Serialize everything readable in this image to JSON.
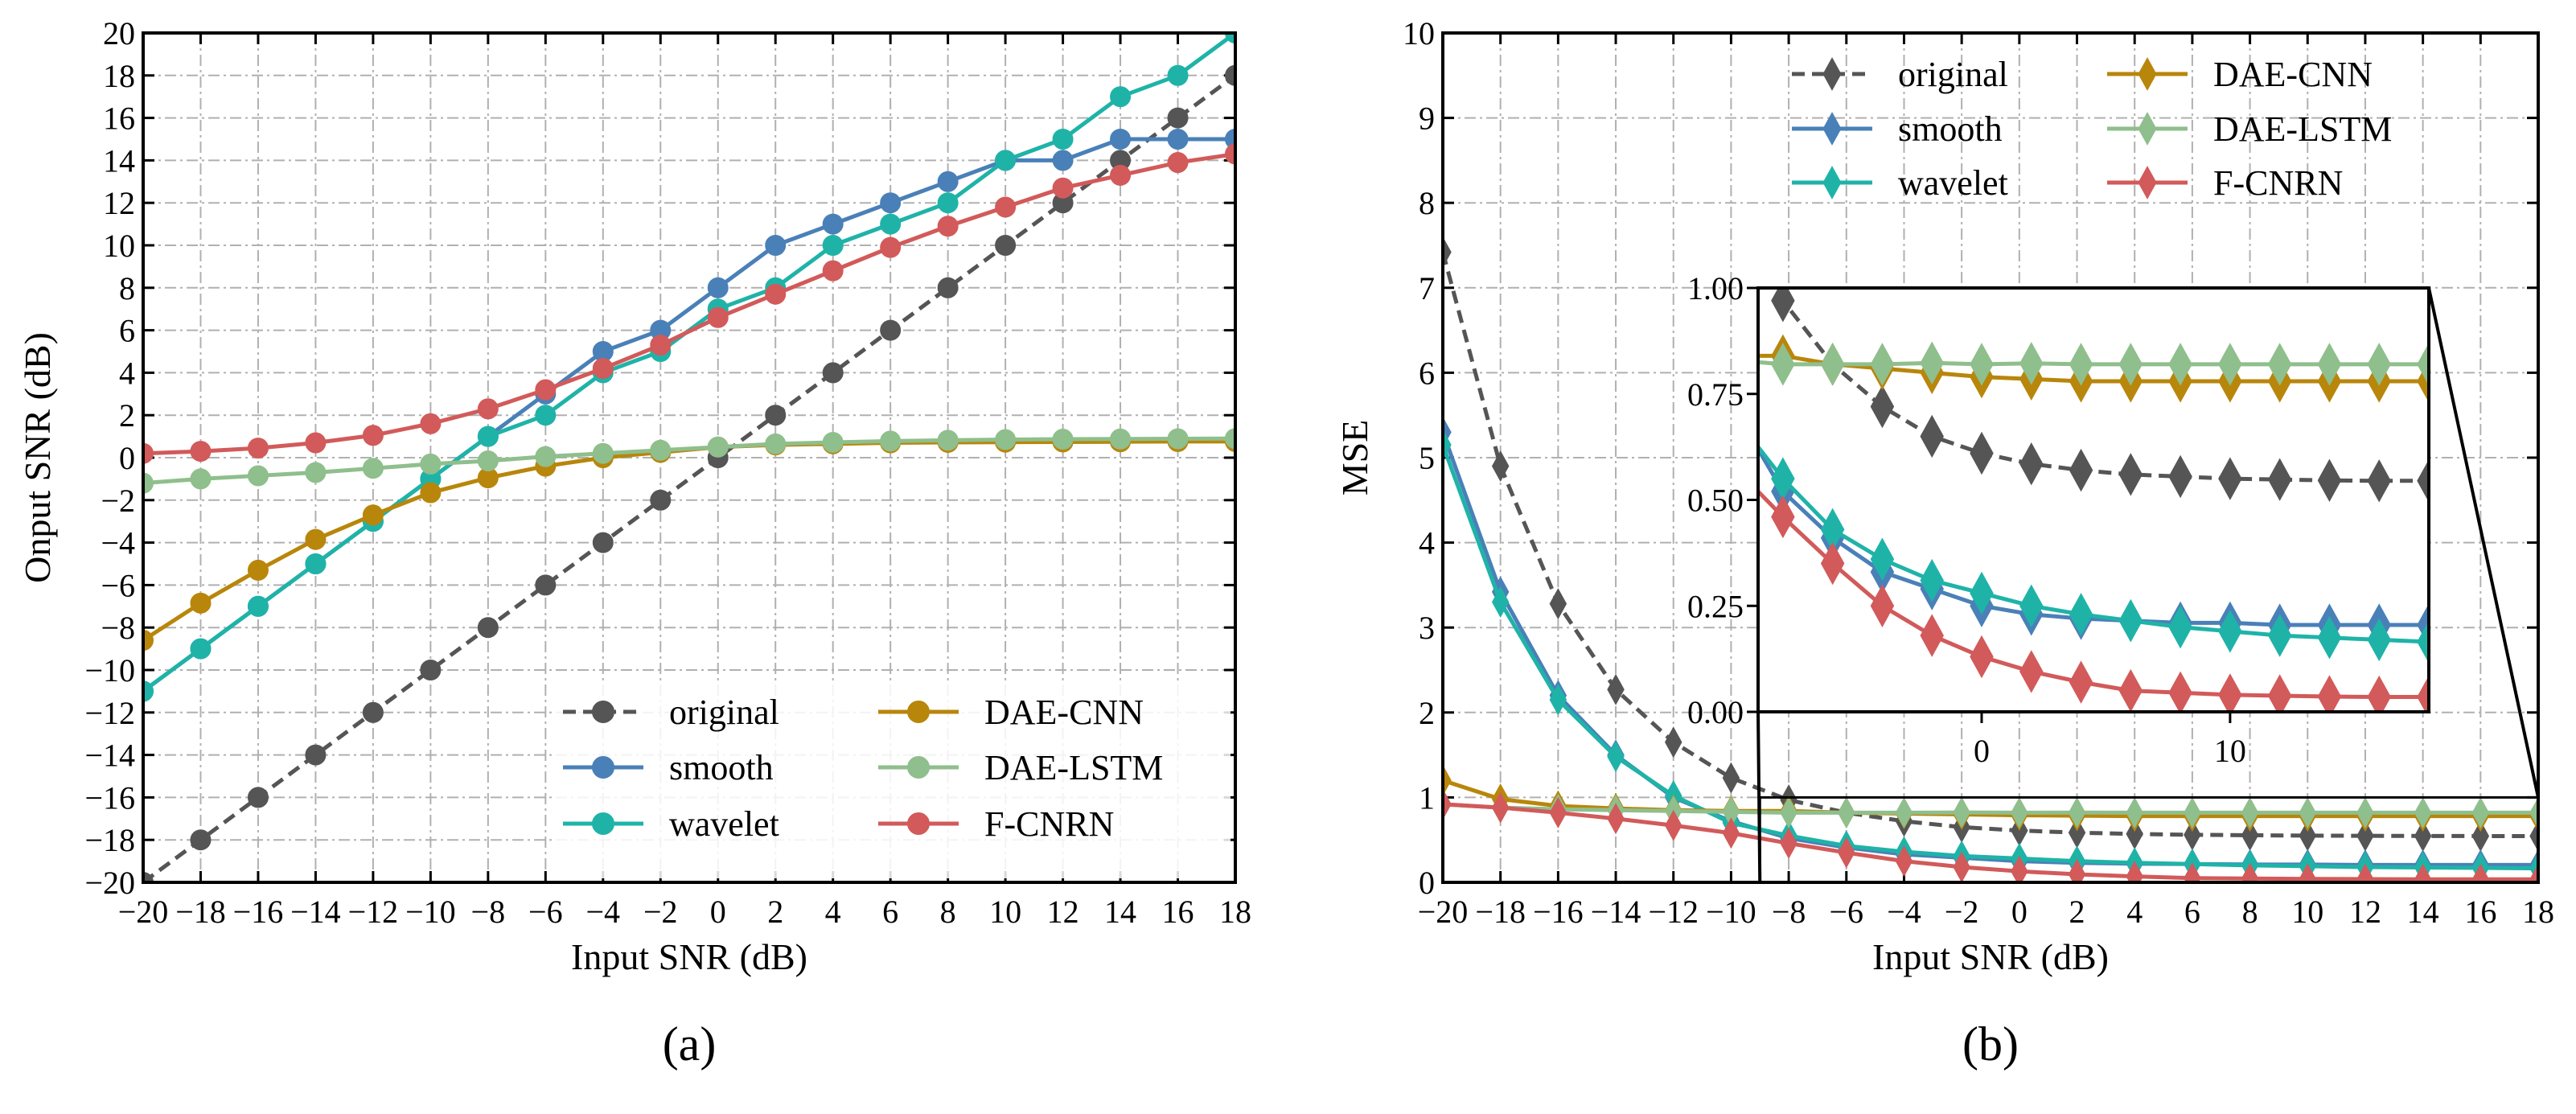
{
  "series_style": {
    "original": {
      "color": "#555555",
      "dashed": true
    },
    "smooth": {
      "color": "#4a80b8",
      "dashed": false
    },
    "wavelet": {
      "color": "#1fb3a8",
      "dashed": false
    },
    "DAE-CNN": {
      "color": "#b8860b",
      "dashed": false
    },
    "DAE-LSTM": {
      "color": "#8fbf8c",
      "dashed": false
    },
    "F-CNRN": {
      "color": "#d25a5a",
      "dashed": false
    }
  },
  "chart_data": [
    {
      "type": "line",
      "panel_label": "(a)",
      "marker": "circle",
      "xlabel": "Input SNR (dB)",
      "ylabel": "Onput SNR (dB)",
      "xlim": [
        -20,
        18
      ],
      "ylim": [
        -20,
        20
      ],
      "xticks": [
        -20,
        -18,
        -16,
        -14,
        -12,
        -10,
        -8,
        -6,
        -4,
        -2,
        0,
        2,
        4,
        6,
        8,
        10,
        12,
        14,
        16,
        18
      ],
      "yticks": [
        -20,
        -18,
        -16,
        -14,
        -12,
        -10,
        -8,
        -6,
        -4,
        -2,
        0,
        2,
        4,
        6,
        8,
        10,
        12,
        14,
        16,
        18,
        20
      ],
      "grid": true,
      "legend": {
        "placement": "lower-right",
        "columns": 2,
        "entries": [
          "original",
          "smooth",
          "wavelet",
          "DAE-CNN",
          "DAE-LSTM",
          "F-CNRN"
        ]
      },
      "x": [
        -20,
        -18,
        -16,
        -14,
        -12,
        -10,
        -8,
        -6,
        -4,
        -2,
        0,
        2,
        4,
        6,
        8,
        10,
        12,
        14,
        16,
        18
      ],
      "series": [
        {
          "name": "original",
          "values": [
            -20,
            -18,
            -16,
            -14,
            -12,
            -10,
            -8,
            -6,
            -4,
            -2,
            0,
            2,
            4,
            6,
            8,
            10,
            12,
            14,
            16,
            18
          ]
        },
        {
          "name": "smooth",
          "values": [
            -11,
            -9,
            -7,
            -5,
            -3,
            -1,
            1,
            3,
            5,
            6,
            8,
            10,
            11,
            12,
            13,
            14,
            14,
            15,
            15,
            15
          ]
        },
        {
          "name": "wavelet",
          "values": [
            -11,
            -9,
            -7,
            -5,
            -3,
            -1,
            1,
            2,
            4,
            5,
            7,
            8,
            10,
            11,
            12,
            14,
            15,
            17,
            18,
            20
          ]
        },
        {
          "name": "DAE-CNN",
          "values": [
            -8.6,
            -6.85,
            -5.3,
            -3.85,
            -2.7,
            -1.65,
            -0.95,
            -0.4,
            0.0,
            0.25,
            0.5,
            0.6,
            0.65,
            0.7,
            0.72,
            0.73,
            0.74,
            0.75,
            0.76,
            0.76
          ]
        },
        {
          "name": "DAE-LSTM",
          "values": [
            -1.2,
            -1.0,
            -0.85,
            -0.7,
            -0.5,
            -0.3,
            -0.15,
            0.05,
            0.2,
            0.35,
            0.5,
            0.65,
            0.72,
            0.78,
            0.82,
            0.85,
            0.87,
            0.88,
            0.89,
            0.9
          ]
        },
        {
          "name": "F-CNRN",
          "values": [
            0.2,
            0.3,
            0.45,
            0.7,
            1.05,
            1.6,
            2.3,
            3.2,
            4.2,
            5.3,
            6.6,
            7.7,
            8.8,
            9.9,
            10.9,
            11.8,
            12.7,
            13.3,
            13.9,
            14.3
          ]
        }
      ]
    },
    {
      "type": "line",
      "panel_label": "(b)",
      "marker": "diamond",
      "xlabel": "Input SNR (dB)",
      "ylabel": "MSE",
      "xlim": [
        -20,
        18
      ],
      "ylim": [
        0,
        10
      ],
      "xticks": [
        -20,
        -18,
        -16,
        -14,
        -12,
        -10,
        -8,
        -6,
        -4,
        -2,
        0,
        2,
        4,
        6,
        8,
        10,
        12,
        14,
        16,
        18
      ],
      "yticks": [
        0,
        1,
        2,
        3,
        4,
        5,
        6,
        7,
        8,
        9,
        10
      ],
      "grid": true,
      "legend": {
        "placement": "upper-right",
        "columns": 2,
        "entries": [
          "original",
          "smooth",
          "wavelet",
          "DAE-CNN",
          "DAE-LSTM",
          "F-CNRN"
        ]
      },
      "inset": {
        "xlim": [
          -9,
          18
        ],
        "ylim": [
          0,
          1
        ],
        "xticks": [
          0,
          10
        ],
        "yticks": [
          "0.00",
          "0.25",
          "0.50",
          "0.75",
          "1.00"
        ]
      },
      "x": [
        -20,
        -18,
        -16,
        -14,
        -12,
        -10,
        -8,
        -6,
        -4,
        -2,
        0,
        2,
        4,
        6,
        8,
        10,
        12,
        14,
        16,
        18
      ],
      "series": [
        {
          "name": "original",
          "values": [
            7.42,
            4.9,
            3.28,
            2.27,
            1.65,
            1.23,
            0.97,
            0.82,
            0.72,
            0.65,
            0.61,
            0.585,
            0.57,
            0.56,
            0.555,
            0.55,
            0.548,
            0.546,
            0.545,
            0.545
          ]
        },
        {
          "name": "smooth",
          "values": [
            5.3,
            3.42,
            2.2,
            1.5,
            1.0,
            0.72,
            0.52,
            0.41,
            0.33,
            0.29,
            0.25,
            0.23,
            0.22,
            0.215,
            0.21,
            0.21,
            0.205,
            0.205,
            0.205,
            0.205
          ]
        },
        {
          "name": "wavelet",
          "values": [
            5.15,
            3.3,
            2.15,
            1.48,
            1.02,
            0.7,
            0.55,
            0.43,
            0.36,
            0.31,
            0.28,
            0.25,
            0.23,
            0.215,
            0.2,
            0.19,
            0.18,
            0.175,
            0.17,
            0.165
          ]
        },
        {
          "name": "DAE-CNN",
          "values": [
            1.2,
            0.98,
            0.9,
            0.87,
            0.85,
            0.84,
            0.84,
            0.82,
            0.81,
            0.8,
            0.79,
            0.785,
            0.78,
            0.78,
            0.78,
            0.78,
            0.78,
            0.78,
            0.78,
            0.78
          ]
        },
        {
          "name": "DAE-LSTM",
          "values": [
            0.92,
            0.88,
            0.86,
            0.85,
            0.84,
            0.83,
            0.82,
            0.82,
            0.82,
            0.823,
            0.82,
            0.822,
            0.82,
            0.82,
            0.82,
            0.82,
            0.82,
            0.82,
            0.82,
            0.82
          ]
        },
        {
          "name": "F-CNRN",
          "values": [
            0.92,
            0.88,
            0.82,
            0.75,
            0.67,
            0.58,
            0.46,
            0.35,
            0.25,
            0.18,
            0.13,
            0.095,
            0.07,
            0.05,
            0.045,
            0.04,
            0.038,
            0.036,
            0.035,
            0.035
          ]
        }
      ]
    }
  ]
}
